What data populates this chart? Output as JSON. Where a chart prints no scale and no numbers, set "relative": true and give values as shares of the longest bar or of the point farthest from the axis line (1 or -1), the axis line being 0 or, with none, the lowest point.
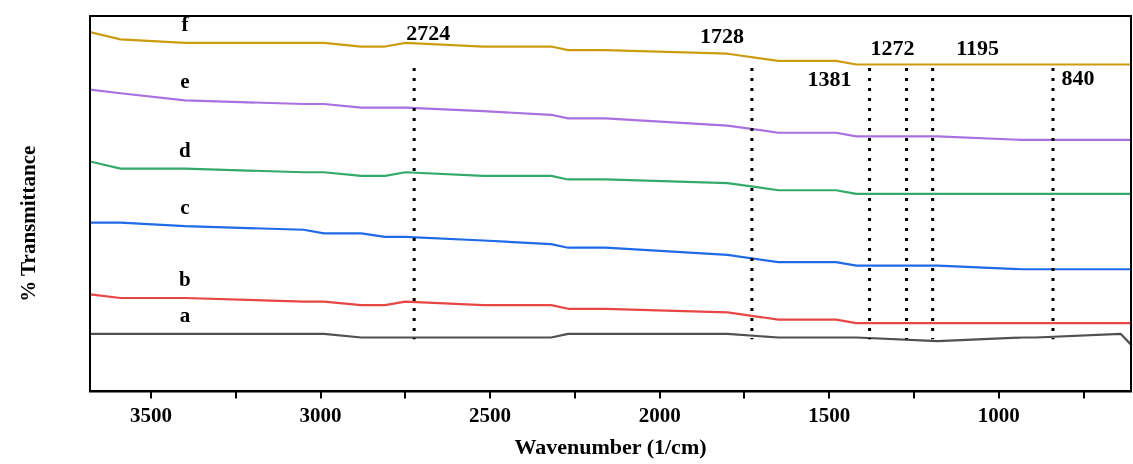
{
  "chart_data": {
    "type": "line",
    "relative": true,
    "xlabel": "Wavenumber (1/cm)",
    "ylabel": "% Transmittance",
    "xlim": [
      3680,
      610
    ],
    "xticks": [
      3500,
      {
        "value": 3250,
        "label": null
      },
      3000,
      {
        "value": 2750,
        "label": null
      },
      2500,
      {
        "value": 2250,
        "label": null
      },
      2000,
      {
        "value": 1750,
        "label": null
      },
      1500,
      {
        "value": 1250,
        "label": null
      },
      1000,
      {
        "value": 750,
        "label": null
      }
    ],
    "x": [
      3680,
      3590,
      3400,
      3050,
      2990,
      2880,
      2810,
      2750,
      2520,
      2320,
      2270,
      2160,
      1800,
      1650,
      1560,
      1480,
      1420,
      1180,
      930,
      890,
      640,
      610
    ],
    "series": [
      {
        "name": "a",
        "color": "#505050",
        "values": [
          0.16,
          0.16,
          0.16,
          0.16,
          0.16,
          0.15,
          0.15,
          0.15,
          0.15,
          0.15,
          0.16,
          0.16,
          0.16,
          0.15,
          0.15,
          0.15,
          0.15,
          0.14,
          0.15,
          0.15,
          0.16,
          0.13
        ]
      },
      {
        "name": "b",
        "color": "#e84545",
        "values": [
          0.27,
          0.26,
          0.26,
          0.25,
          0.25,
          0.24,
          0.24,
          0.25,
          0.24,
          0.24,
          0.23,
          0.23,
          0.22,
          0.2,
          0.2,
          0.2,
          0.19,
          0.19,
          0.19,
          0.19,
          0.19,
          0.19
        ]
      },
      {
        "name": "c",
        "color": "#1f6ae6",
        "values": [
          0.47,
          0.47,
          0.46,
          0.45,
          0.44,
          0.44,
          0.43,
          0.43,
          0.42,
          0.41,
          0.4,
          0.4,
          0.38,
          0.36,
          0.36,
          0.36,
          0.35,
          0.35,
          0.34,
          0.34,
          0.34,
          0.34
        ]
      },
      {
        "name": "d",
        "color": "#33aa6a",
        "values": [
          0.64,
          0.62,
          0.62,
          0.61,
          0.61,
          0.6,
          0.6,
          0.61,
          0.6,
          0.6,
          0.59,
          0.59,
          0.58,
          0.56,
          0.56,
          0.56,
          0.55,
          0.55,
          0.55,
          0.55,
          0.55,
          0.55
        ]
      },
      {
        "name": "e",
        "color": "#a870e0",
        "values": [
          0.84,
          0.83,
          0.81,
          0.8,
          0.8,
          0.79,
          0.79,
          0.79,
          0.78,
          0.77,
          0.76,
          0.76,
          0.74,
          0.72,
          0.72,
          0.72,
          0.71,
          0.71,
          0.7,
          0.7,
          0.7,
          0.7
        ]
      },
      {
        "name": "f",
        "color": "#cc9c10",
        "values": [
          1.0,
          0.98,
          0.97,
          0.97,
          0.97,
          0.96,
          0.96,
          0.97,
          0.96,
          0.96,
          0.95,
          0.95,
          0.94,
          0.92,
          0.92,
          0.92,
          0.91,
          0.91,
          0.91,
          0.91,
          0.91,
          0.91
        ]
      }
    ],
    "ref_lines": [
      {
        "axis": "x",
        "value": 2724,
        "label": "2724",
        "line_style": "dotted"
      },
      {
        "axis": "x",
        "value": 1728,
        "label": "1728",
        "line_style": "dotted"
      },
      {
        "axis": "x",
        "value": 1381,
        "label": "1381",
        "line_style": "dotted"
      },
      {
        "axis": "x",
        "value": 1272,
        "label": "1272",
        "line_style": "dotted"
      },
      {
        "axis": "x",
        "value": 1195,
        "label": "1195",
        "line_style": "dotted"
      },
      {
        "axis": "x",
        "value": 840,
        "label": "840",
        "line_style": "dotted"
      }
    ]
  }
}
